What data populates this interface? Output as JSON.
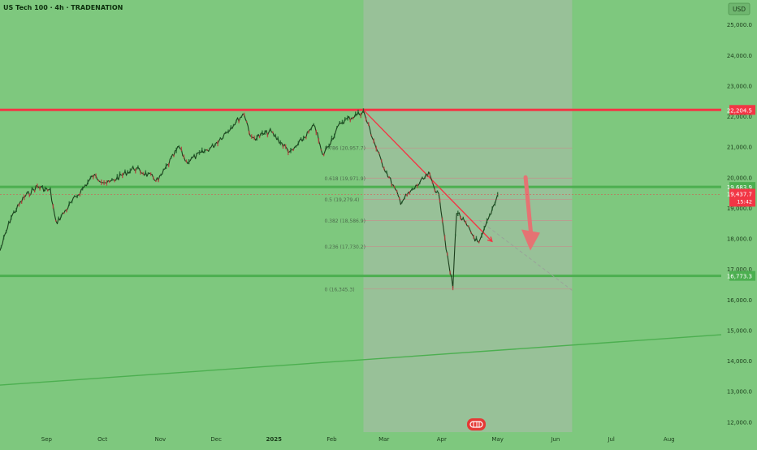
{
  "header": {
    "title": "US Tech 100 · 4h · TRADENATION",
    "currency": "USD"
  },
  "chart_data": {
    "type": "candlestick",
    "title": "US Tech 100 · 4h · TRADENATION",
    "ylim": [
      11800,
      25600
    ],
    "y_ticks": [
      12000,
      13000,
      14000,
      15000,
      16000,
      17000,
      18000,
      19000,
      20000,
      21000,
      22000,
      23000,
      24000,
      25000
    ],
    "y_tick_labels": [
      "12,000.0",
      "13,000.0",
      "14,000.0",
      "15,000.0",
      "16,000.0",
      "17,000.0",
      "18,000.0",
      "19,000.0",
      "20,000.0",
      "21,000.0",
      "22,000.0",
      "23,000.0",
      "24,000.0",
      "25,000.0"
    ],
    "x_labels": [
      "Sep",
      "Oct",
      "Nov",
      "Dec",
      "2025",
      "Feb",
      "Mar",
      "Apr",
      "May",
      "Jun",
      "Jul",
      "Aug"
    ],
    "x_label_dates": [
      "2024-09-01",
      "2024-10-01",
      "2024-11-01",
      "2024-12-01",
      "2025-01-01",
      "2025-02-01",
      "2025-03-01",
      "2025-04-01",
      "2025-05-01",
      "2025-06-01",
      "2025-07-01",
      "2025-08-01"
    ],
    "x_range": [
      "2024-08-07",
      "2025-08-29"
    ],
    "price_path": [
      {
        "date": "2024-08-07",
        "value": 17600
      },
      {
        "date": "2024-08-13",
        "value": 18700
      },
      {
        "date": "2024-08-20",
        "value": 19350
      },
      {
        "date": "2024-08-27",
        "value": 19700
      },
      {
        "date": "2024-09-03",
        "value": 19550
      },
      {
        "date": "2024-09-06",
        "value": 18500
      },
      {
        "date": "2024-09-16",
        "value": 19300
      },
      {
        "date": "2024-09-26",
        "value": 20050
      },
      {
        "date": "2024-10-04",
        "value": 19800
      },
      {
        "date": "2024-10-18",
        "value": 20300
      },
      {
        "date": "2024-10-31",
        "value": 19900
      },
      {
        "date": "2024-11-11",
        "value": 21000
      },
      {
        "date": "2024-11-15",
        "value": 20500
      },
      {
        "date": "2024-11-29",
        "value": 21000
      },
      {
        "date": "2024-12-16",
        "value": 22100
      },
      {
        "date": "2024-12-20",
        "value": 21250
      },
      {
        "date": "2024-12-30",
        "value": 21500
      },
      {
        "date": "2025-01-10",
        "value": 20800
      },
      {
        "date": "2025-01-23",
        "value": 21700
      },
      {
        "date": "2025-01-27",
        "value": 20700
      },
      {
        "date": "2025-02-06",
        "value": 21800
      },
      {
        "date": "2025-02-18",
        "value": 22150
      },
      {
        "date": "2025-02-27",
        "value": 20600
      },
      {
        "date": "2025-03-10",
        "value": 19200
      },
      {
        "date": "2025-03-25",
        "value": 20100
      },
      {
        "date": "2025-03-31",
        "value": 19300
      },
      {
        "date": "2025-04-04",
        "value": 17400
      },
      {
        "date": "2025-04-07",
        "value": 16400
      },
      {
        "date": "2025-04-09",
        "value": 18900
      },
      {
        "date": "2025-04-21",
        "value": 17800
      },
      {
        "date": "2025-05-01",
        "value": 19437.7
      }
    ],
    "horizontal_levels": [
      {
        "value": 22204.5,
        "label": "22,204.5",
        "color": "#f23645"
      },
      {
        "value": 19683.9,
        "label": "19,683.9",
        "color": "#4caf50"
      },
      {
        "value": 16773.3,
        "label": "16,773.3",
        "color": "#4caf50"
      }
    ],
    "current_price": {
      "value": 19437.7,
      "label": "19,437.7",
      "countdown": "15:42",
      "color": "#f23645"
    },
    "fib_retracement": {
      "start_date": "2025-02-18",
      "end_date": "2025-06-10",
      "levels": [
        {
          "ratio": 0,
          "value": 16345.3,
          "label": "0 (16,345.3)"
        },
        {
          "ratio": 0.236,
          "value": 17730.2,
          "label": "0.236 (17,730.2)"
        },
        {
          "ratio": 0.382,
          "value": 18586.9,
          "label": "0.382 (18,586.9)"
        },
        {
          "ratio": 0.5,
          "value": 19279.4,
          "label": "0.5 (19,279.4)"
        },
        {
          "ratio": 0.618,
          "value": 19971.9,
          "label": "0.618 (19,971.9)"
        },
        {
          "ratio": 0.786,
          "value": 20957.7,
          "label": "0.786 (20,957.7)"
        }
      ]
    },
    "projection_zone": {
      "start_date": "2025-02-18",
      "end_date": "2025-06-10"
    },
    "trendlines": [
      {
        "name": "descending",
        "from": {
          "date": "2025-02-18",
          "value": 22204.5
        },
        "to": {
          "date": "2025-04-28",
          "value": 17900
        },
        "color": "#f23645"
      },
      {
        "name": "descending-extension",
        "from": {
          "date": "2025-04-21",
          "value": 18600
        },
        "to": {
          "date": "2025-06-10",
          "value": 16300
        },
        "color": "#9aa09a",
        "dashed": true
      },
      {
        "name": "long-term-support",
        "from": {
          "date": "2024-08-07",
          "value": 13200
        },
        "to": {
          "date": "2025-08-29",
          "value": 14850
        },
        "color": "#4caf50"
      }
    ],
    "projection_arrow": {
      "from": {
        "date": "2025-05-16",
        "value": 20000
      },
      "to": {
        "date": "2025-05-19",
        "value": 17600
      },
      "color": "#e57373"
    },
    "grid": false,
    "legend": "none"
  }
}
